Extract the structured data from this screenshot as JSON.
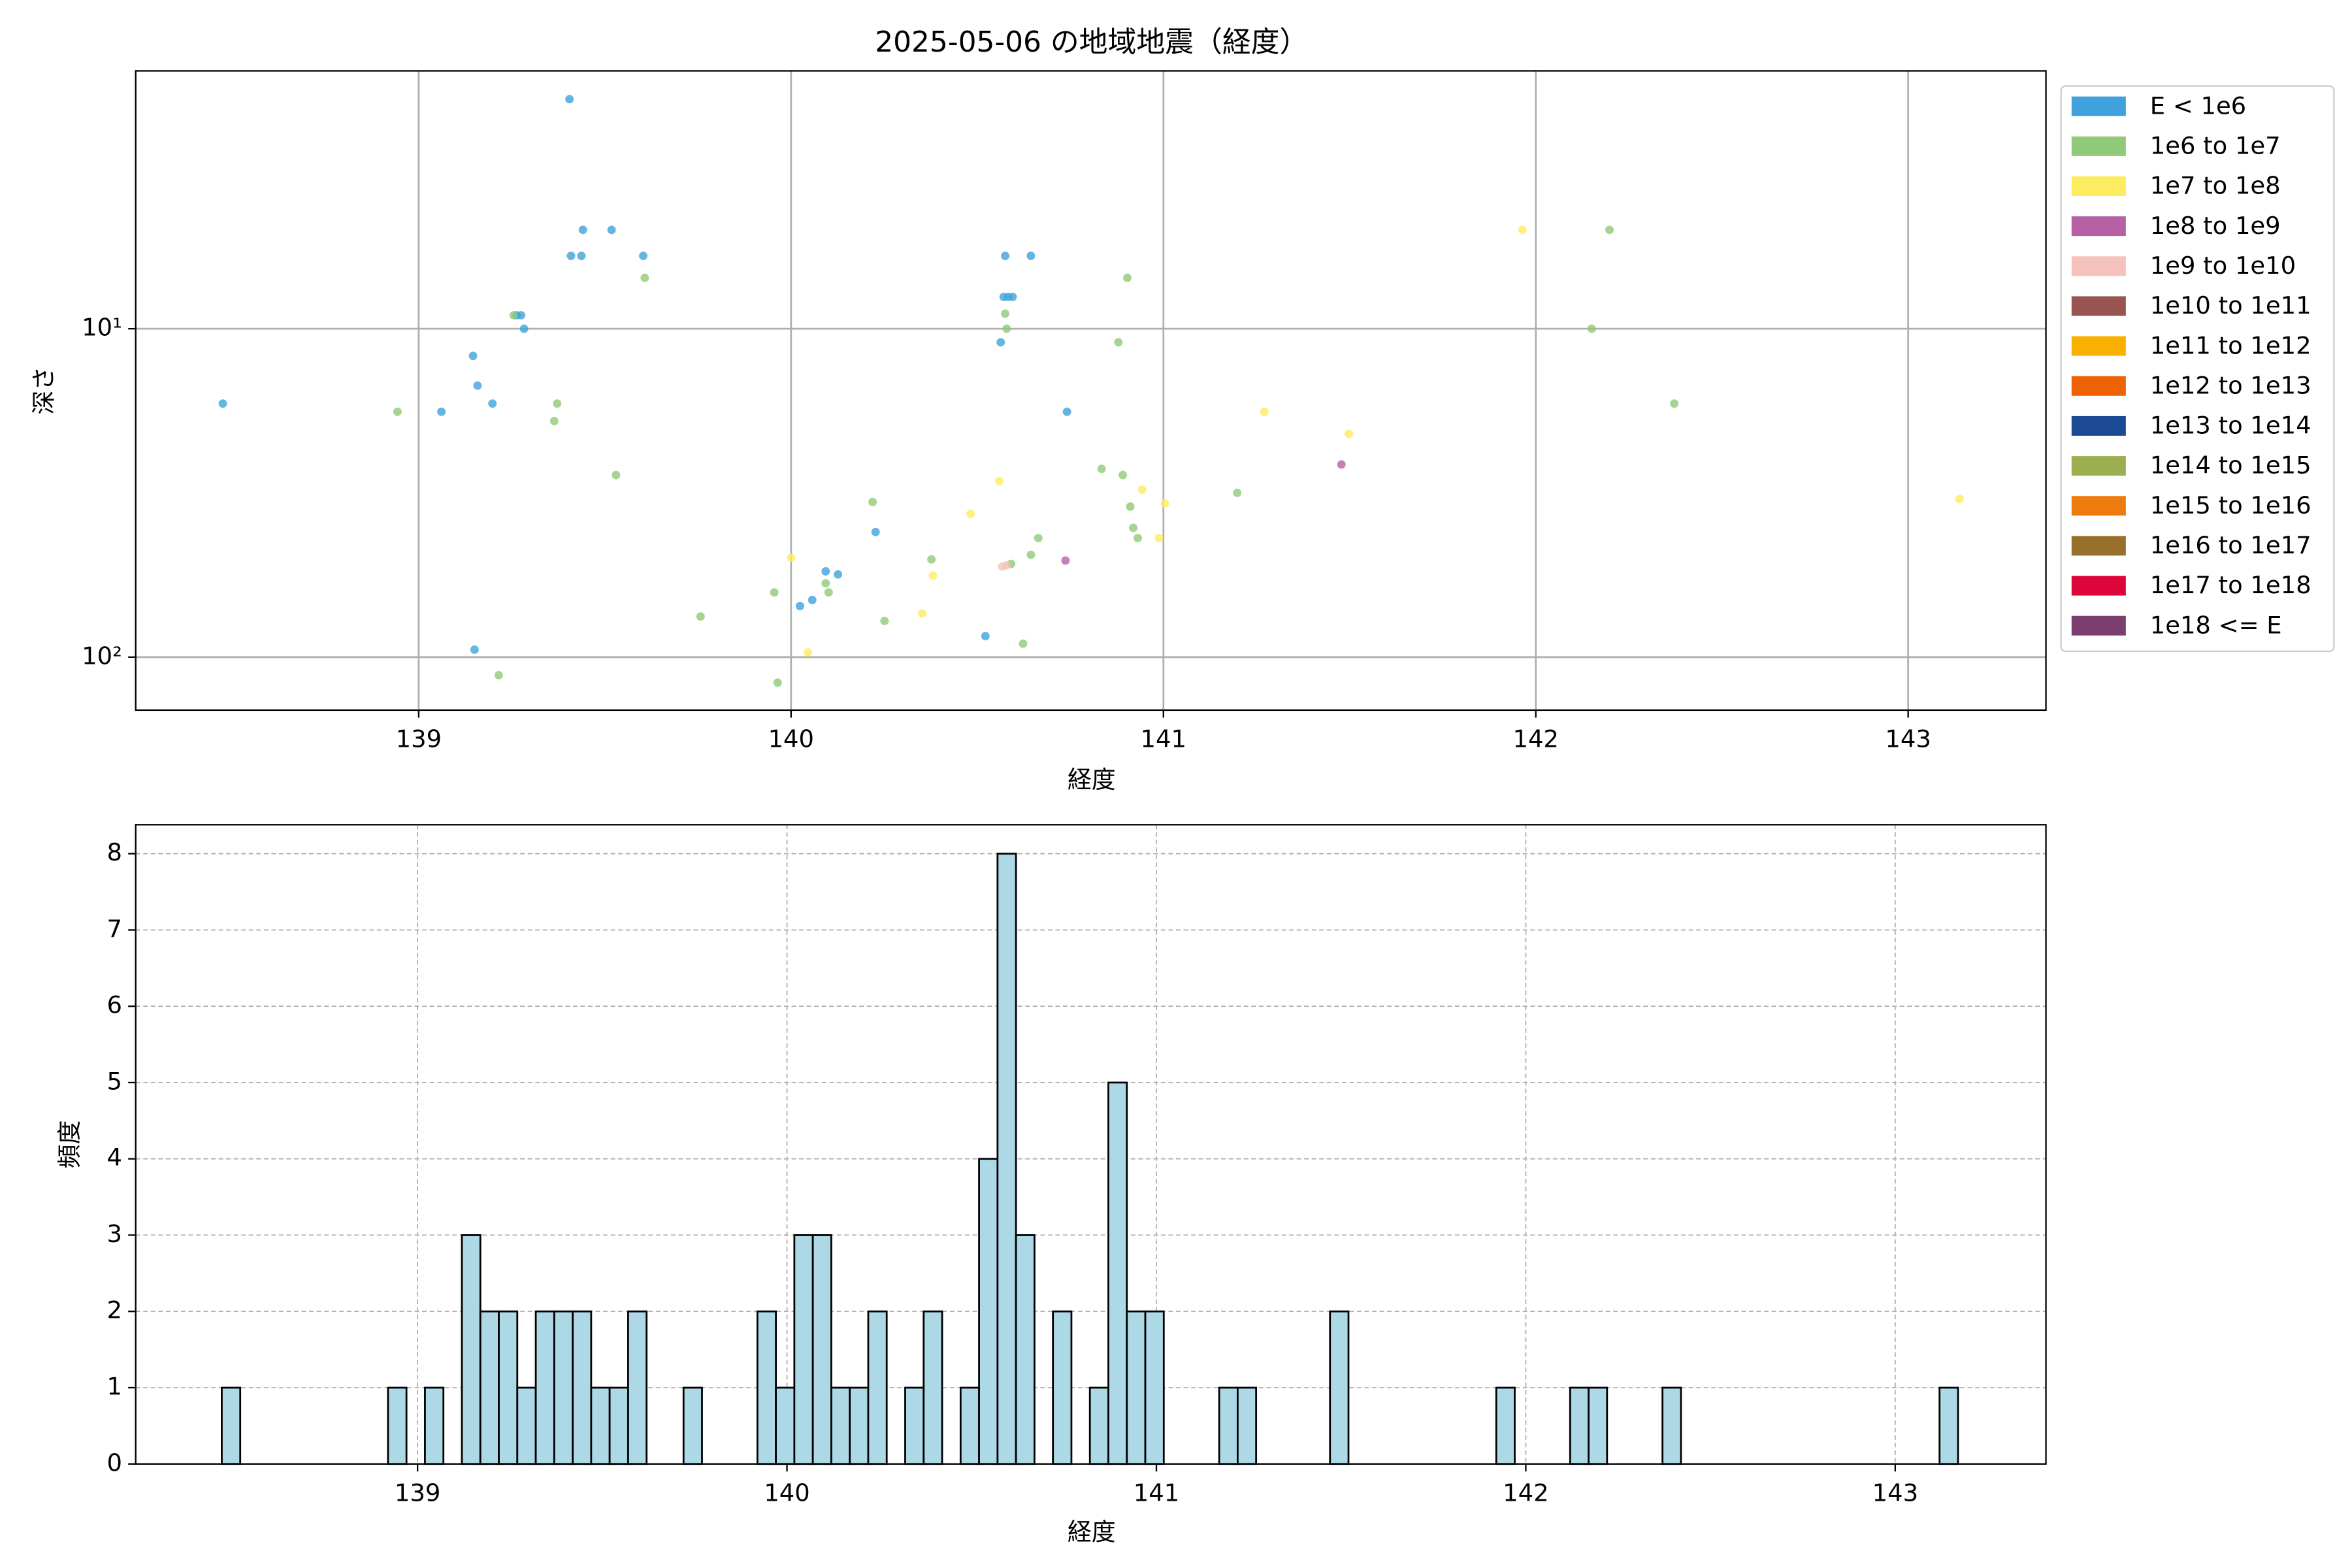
{
  "chart_data": [
    {
      "type": "scatter",
      "title": "2025-05-06 の地域地震（経度）",
      "x_label": "経度",
      "y_label": "深さ",
      "xlim": [
        138.24,
        143.37
      ],
      "ylim": [
        1.64,
        145
      ],
      "y_scale": "log",
      "y_inverted": true,
      "xticks": [
        139,
        140,
        141,
        142,
        143
      ],
      "yticks": [
        {
          "value": 10,
          "label": "10¹"
        },
        {
          "value": 100,
          "label": "10²"
        }
      ],
      "grid": true,
      "legend": "outside right",
      "series": [
        {
          "name": "E < 1e6",
          "color": "#3fa2dc",
          "x": [
            138.474,
            139.405,
            139.441,
            139.518,
            139.409,
            139.437,
            139.603,
            139.263,
            139.275,
            139.283,
            139.146,
            139.158,
            139.061,
            139.198,
            139.15,
            140.575,
            140.644,
            140.571,
            140.583,
            140.595,
            140.563,
            140.741,
            140.227,
            140.093,
            140.126,
            140.057,
            140.024,
            140.522
          ],
          "values": [
            16.9,
            2,
            5,
            5,
            6,
            6,
            6,
            9.1,
            9.1,
            10,
            12.1,
            14.9,
            17.9,
            16.9,
            94.9,
            6,
            6,
            8,
            8,
            8,
            11,
            17.9,
            41.6,
            54.8,
            56,
            67,
            69.9,
            86.3
          ]
        },
        {
          "name": "1e6 to 1e7",
          "color": "#90c978",
          "x": [
            138.943,
            139.372,
            139.364,
            139.53,
            139.607,
            139.255,
            139.757,
            139.215,
            139.955,
            139.964,
            140.093,
            140.101,
            140.219,
            140.251,
            140.377,
            140.575,
            140.579,
            140.591,
            140.644,
            140.664,
            140.623,
            140.903,
            140.879,
            140.834,
            140.891,
            140.911,
            140.919,
            140.931,
            141.198,
            142.198,
            142.15,
            142.372
          ],
          "values": [
            17.9,
            16.9,
            19.1,
            27.9,
            7,
            9.1,
            75.2,
            113.5,
            63.5,
            119.6,
            59.6,
            63.5,
            33.7,
            77.6,
            50.4,
            9,
            10,
            52,
            48.8,
            43.4,
            91,
            7,
            11,
            26.7,
            27.9,
            34.8,
            40.4,
            43.4,
            31.6,
            5,
            10,
            16.9
          ]
        },
        {
          "name": "1e7 to 1e8",
          "color": "#fdec5f",
          "x": [
            140,
            140.045,
            140.352,
            140.381,
            140.482,
            140.559,
            140.943,
            141.004,
            140.988,
            141.271,
            141.498,
            141.964,
            143.138
          ],
          "values": [
            49.8,
            96.8,
            73.6,
            56.5,
            36.6,
            29.1,
            30.9,
            34,
            43.4,
            17.9,
            20.9,
            5,
            33
          ]
        },
        {
          "name": "1e8 to 1e9",
          "color": "#b760a6",
          "x": [
            141.478,
            140.737
          ],
          "values": [
            25.9,
            50.8
          ]
        },
        {
          "name": "1e9 to 1e10",
          "color": "#f5c2bb",
          "x": [
            140.567,
            140.579
          ],
          "values": [
            53,
            52.5
          ]
        },
        {
          "name": "1e10 to 1e11",
          "color": "#985450",
          "x": [],
          "values": []
        },
        {
          "name": "1e11 to 1e12",
          "color": "#f9b100",
          "x": [],
          "values": []
        },
        {
          "name": "1e12 to 1e13",
          "color": "#ef6204",
          "x": [],
          "values": []
        },
        {
          "name": "1e13 to 1e14",
          "color": "#1c4994",
          "x": [],
          "values": []
        },
        {
          "name": "1e14 to 1e15",
          "color": "#9caf50",
          "x": [],
          "values": []
        },
        {
          "name": "1e15 to 1e16",
          "color": "#ee7b0e",
          "x": [],
          "values": []
        },
        {
          "name": "1e16 to 1e17",
          "color": "#97702b",
          "x": [],
          "values": []
        },
        {
          "name": "1e17 to 1e18",
          "color": "#dc063b",
          "x": [],
          "values": []
        },
        {
          "name": "1e18 <= E",
          "color": "#7b3e6e",
          "x": [],
          "values": []
        }
      ]
    },
    {
      "type": "histogram",
      "x_label": "経度",
      "y_label": "頻度",
      "bins": [
        138.47,
        138.52,
        138.57,
        138.62,
        138.67,
        138.72,
        138.77,
        138.82,
        138.87,
        138.92,
        138.97,
        139.02,
        139.07,
        139.12,
        139.17,
        139.22,
        139.27,
        139.32,
        139.37,
        139.42,
        139.47,
        139.52,
        139.57,
        139.62,
        139.67,
        139.72,
        139.77,
        139.82,
        139.87,
        139.92,
        139.97,
        140.02,
        140.07,
        140.12,
        140.17,
        140.22,
        140.27,
        140.32,
        140.37,
        140.42,
        140.47,
        140.52,
        140.57,
        140.62,
        140.67,
        140.72,
        140.77,
        140.82,
        140.87,
        140.92,
        140.97,
        141.02,
        141.07,
        141.12,
        141.17,
        141.22,
        141.27,
        141.32,
        141.37,
        141.42,
        141.47,
        141.52,
        141.57,
        141.62,
        141.67,
        141.72,
        141.77,
        141.82,
        141.87,
        141.92,
        141.97,
        142.02,
        142.07,
        142.12,
        142.17,
        142.22,
        142.27,
        142.32,
        142.37,
        142.42,
        142.47,
        142.52,
        142.57,
        142.62,
        142.67,
        142.72,
        142.77,
        142.82,
        142.87,
        142.92,
        142.97,
        143.02,
        143.07,
        143.12,
        143.17
      ],
      "values": [
        1,
        0,
        0,
        0,
        0,
        0,
        0,
        0,
        0,
        1,
        0,
        1,
        0,
        3,
        2,
        2,
        1,
        2,
        2,
        2,
        1,
        1,
        2,
        0,
        0,
        1,
        0,
        0,
        0,
        2,
        1,
        3,
        3,
        1,
        1,
        2,
        0,
        1,
        2,
        0,
        1,
        4,
        8,
        3,
        0,
        2,
        0,
        1,
        5,
        2,
        2,
        0,
        0,
        0,
        1,
        1,
        0,
        0,
        0,
        0,
        2,
        0,
        0,
        0,
        0,
        0,
        0,
        0,
        0,
        1,
        0,
        0,
        0,
        1,
        1,
        0,
        0,
        0,
        1,
        0,
        0,
        0,
        0,
        0,
        0,
        0,
        0,
        0,
        0,
        0,
        0,
        0,
        0,
        1
      ],
      "color": "#add8e6",
      "edgecolor": "#000000",
      "xlim": [
        138.237,
        143.408
      ],
      "ylim": [
        0,
        8.38
      ],
      "xticks": [
        139,
        140,
        141,
        142,
        143
      ],
      "yticks": [
        0,
        1,
        2,
        3,
        4,
        5,
        6,
        7,
        8
      ],
      "grid": "dashed"
    }
  ]
}
